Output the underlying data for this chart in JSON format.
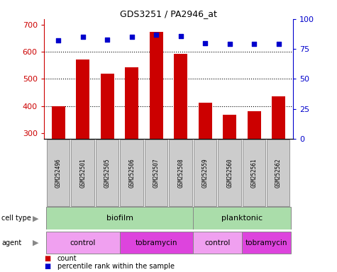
{
  "title": "GDS3251 / PA2946_at",
  "samples": [
    "GSM252496",
    "GSM252501",
    "GSM252505",
    "GSM252506",
    "GSM252507",
    "GSM252508",
    "GSM252559",
    "GSM252560",
    "GSM252561",
    "GSM252562"
  ],
  "counts": [
    400,
    572,
    520,
    543,
    672,
    592,
    412,
    368,
    382,
    437
  ],
  "percentile_ranks": [
    82,
    85,
    83,
    85,
    87,
    86,
    80,
    79,
    79,
    79
  ],
  "ylim_left": [
    280,
    720
  ],
  "ylim_right": [
    0,
    100
  ],
  "yticks_left": [
    300,
    400,
    500,
    600,
    700
  ],
  "yticks_right": [
    0,
    25,
    50,
    75,
    100
  ],
  "bar_color": "#cc0000",
  "dot_color": "#0000cc",
  "cell_type_color": "#aaddaa",
  "agent_light_color": "#f0a0f0",
  "agent_dark_color": "#dd44dd",
  "sample_box_color": "#cccccc",
  "grid_color": "#000000",
  "cell_types": [
    {
      "label": "biofilm",
      "start": 0,
      "end": 6
    },
    {
      "label": "planktonic",
      "start": 6,
      "end": 10
    }
  ],
  "agents": [
    {
      "label": "control",
      "start": 0,
      "end": 3
    },
    {
      "label": "tobramycin",
      "start": 3,
      "end": 6
    },
    {
      "label": "control",
      "start": 6,
      "end": 8
    },
    {
      "label": "tobramycin",
      "start": 8,
      "end": 10
    }
  ],
  "legend_count_color": "#cc0000",
  "legend_dot_color": "#0000cc"
}
